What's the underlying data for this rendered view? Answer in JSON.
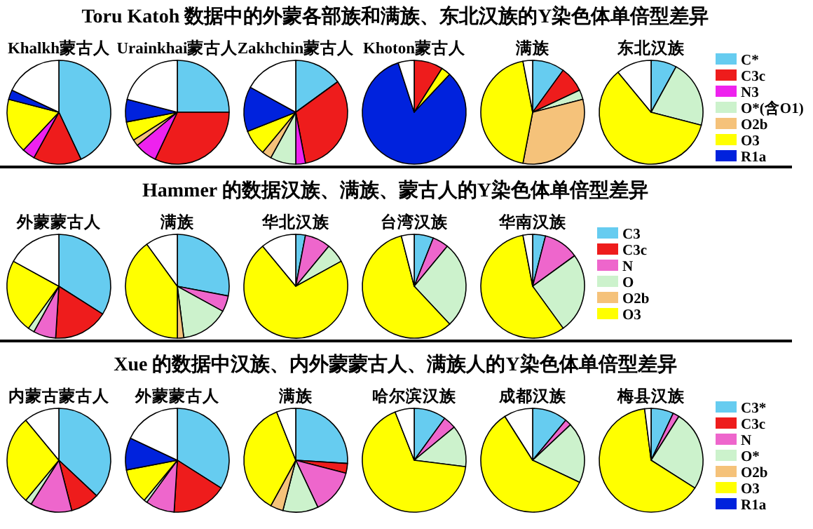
{
  "chart_data": [
    {
      "type": "pie",
      "title": "Toru Katoh 数据中的外蒙各部族和满族、东北汉族的Y染色体单倍型差异",
      "legend": "right",
      "categories": [
        "C*",
        "C3c",
        "N3",
        "O*(含O1)",
        "O2b",
        "O3",
        "R1a",
        null
      ],
      "colors": [
        "#66ccf0",
        "#ee1c1c",
        "#ee22ee",
        "#ccf2cc",
        "#f5c27a",
        "#ffff00",
        "#0022dd",
        "#ffffff"
      ],
      "series": [
        {
          "name": "Khalkh蒙古人",
          "values": [
            43,
            15,
            4,
            0,
            0,
            17,
            3,
            18
          ]
        },
        {
          "name": "Urainkhai蒙古人",
          "values": [
            25,
            32,
            7,
            0,
            2,
            6,
            7,
            21
          ]
        },
        {
          "name": "Zakhchin蒙古人",
          "values": [
            15,
            32,
            3,
            8,
            3,
            8,
            14,
            17
          ]
        },
        {
          "name": "Khoton蒙古人",
          "values": [
            0,
            9,
            0,
            0,
            0,
            3,
            83,
            5
          ]
        },
        {
          "name": "满族",
          "values": [
            10,
            8,
            0,
            3,
            32,
            44,
            0,
            3
          ]
        },
        {
          "name": "东北汉族",
          "values": [
            8,
            0,
            0,
            21,
            0,
            60,
            0,
            11
          ]
        }
      ]
    },
    {
      "type": "pie",
      "title": "Hammer 的数据汉族、满族、蒙古人的Y染色体单倍型差异",
      "legend": "right",
      "categories": [
        "C3",
        "C3c",
        "N",
        "O",
        "O2b",
        "O3",
        null
      ],
      "colors": [
        "#66ccf0",
        "#ee1c1c",
        "#ee66cc",
        "#ccf2cc",
        "#f5c27a",
        "#ffff00",
        "#ffffff"
      ],
      "series": [
        {
          "name": "外蒙蒙古人",
          "values": [
            34,
            17,
            7,
            2,
            0,
            23,
            17
          ]
        },
        {
          "name": "满族",
          "values": [
            28,
            0,
            5,
            15,
            2,
            40,
            10
          ]
        },
        {
          "name": "华北汉族",
          "values": [
            3,
            0,
            8,
            6,
            0,
            72,
            11
          ]
        },
        {
          "name": "台湾汉族",
          "values": [
            6,
            0,
            5,
            27,
            0,
            58,
            4
          ]
        },
        {
          "name": "华南汉族",
          "values": [
            4,
            0,
            11,
            25,
            0,
            57,
            3
          ]
        }
      ]
    },
    {
      "type": "pie",
      "title": "Xue 的数据中汉族、内外蒙蒙古人、满族人的Y染色体单倍型差异",
      "legend": "right",
      "categories": [
        "C3*",
        "C3c",
        "N",
        "O*",
        "O2b",
        "O3",
        "R1a",
        null
      ],
      "colors": [
        "#66ccf0",
        "#ee1c1c",
        "#ee66cc",
        "#ccf2cc",
        "#f5c27a",
        "#ffff00",
        "#0022dd",
        "#ffffff"
      ],
      "series": [
        {
          "name": "内蒙古蒙古人",
          "values": [
            37,
            9,
            13,
            2,
            0,
            28,
            0,
            11
          ]
        },
        {
          "name": "外蒙蒙古人",
          "values": [
            34,
            17,
            9,
            1,
            0,
            11,
            10,
            18
          ]
        },
        {
          "name": "满族",
          "values": [
            26,
            3,
            14,
            11,
            4,
            36,
            0,
            6
          ]
        },
        {
          "name": "哈尔滨汉族",
          "values": [
            10,
            0,
            4,
            13,
            0,
            67,
            0,
            6
          ]
        },
        {
          "name": "成都汉族",
          "values": [
            11,
            0,
            2,
            19,
            0,
            59,
            0,
            9
          ]
        },
        {
          "name": "梅县汉族",
          "values": [
            7,
            0,
            2,
            25,
            0,
            64,
            0,
            2
          ]
        }
      ]
    }
  ]
}
